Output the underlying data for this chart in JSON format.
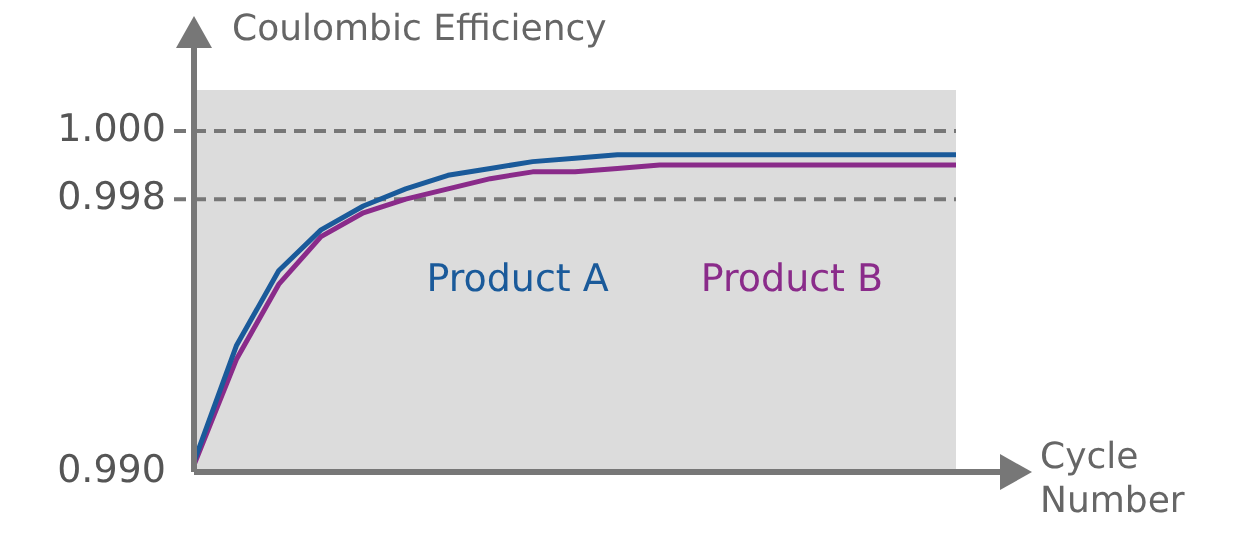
{
  "chart_data": {
    "type": "line",
    "xlabel": "Cycle Number",
    "ylabel": "Coulombic Efficiency",
    "categories": [
      null,
      null,
      null,
      null,
      null,
      null,
      null,
      null,
      null,
      null,
      null,
      null,
      null,
      null,
      null,
      null,
      null,
      null,
      null
    ],
    "series": [
      {
        "name": "Product A",
        "color": "#1a5a9a",
        "values": [
          0.9903,
          0.9937,
          0.9959,
          0.9971,
          0.9978,
          0.9983,
          0.9987,
          0.9989,
          0.9991,
          0.9992,
          0.9993,
          0.9993,
          0.9993,
          0.9993,
          0.9993,
          0.9993,
          0.9993,
          0.9993,
          0.9993
        ]
      },
      {
        "name": "Product B",
        "color": "#8a2b8a",
        "values": [
          0.9902,
          0.9933,
          0.9955,
          0.9969,
          0.9976,
          0.998,
          0.9983,
          0.9986,
          0.9988,
          0.9988,
          0.9989,
          0.999,
          0.999,
          0.999,
          0.999,
          0.999,
          0.999,
          0.999,
          0.999
        ]
      }
    ],
    "ylim": [
      0.99,
      1.0012
    ],
    "yticks": [
      {
        "value": 0.99,
        "label": "0.990"
      },
      {
        "value": 0.998,
        "label": "0.998"
      },
      {
        "value": 1.0,
        "label": "1.000"
      }
    ],
    "ref_lines": [
      {
        "axis": "y",
        "value": 1.0,
        "color": "#777777",
        "line_style": "dashed"
      },
      {
        "axis": "y",
        "value": 0.998,
        "color": "#777777",
        "line_style": "dashed"
      }
    ],
    "grid": false,
    "legend": false,
    "marker": "none",
    "line_style": "solid",
    "tick_labels": "y"
  }
}
